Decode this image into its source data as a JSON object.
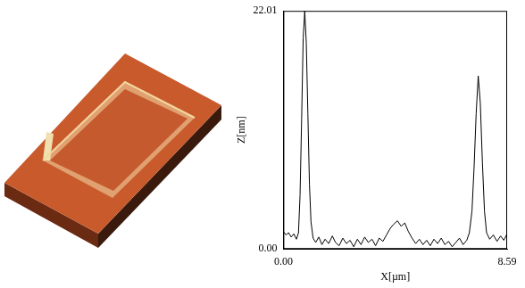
{
  "chart_data": {
    "type": "line",
    "x_label": "X[µm]",
    "y_label": "Z[nm]",
    "color": "#000000",
    "grid": false,
    "xlim": [
      0,
      8.59
    ],
    "ylim": [
      0,
      22.01
    ],
    "xticks": [
      {
        "value": 0,
        "label": "0.00"
      },
      {
        "value": 8.59,
        "label": "8.59"
      }
    ],
    "yticks": [
      {
        "value": 0,
        "label": "0.00"
      },
      {
        "value": 22.01,
        "label": "22.01"
      }
    ],
    "x": [
      0.0,
      0.1,
      0.2,
      0.3,
      0.4,
      0.5,
      0.58,
      0.64,
      0.7,
      0.76,
      0.82,
      0.88,
      0.94,
      1.0,
      1.06,
      1.14,
      1.24,
      1.36,
      1.48,
      1.6,
      1.74,
      1.88,
      2.0,
      2.14,
      2.28,
      2.42,
      2.56,
      2.7,
      2.84,
      2.98,
      3.12,
      3.26,
      3.4,
      3.54,
      3.68,
      3.82,
      3.96,
      4.1,
      4.24,
      4.38,
      4.52,
      4.66,
      4.8,
      4.94,
      5.08,
      5.22,
      5.36,
      5.5,
      5.64,
      5.78,
      5.92,
      6.06,
      6.2,
      6.34,
      6.48,
      6.62,
      6.76,
      6.9,
      7.04,
      7.14,
      7.24,
      7.32,
      7.4,
      7.48,
      7.56,
      7.64,
      7.72,
      7.8,
      7.92,
      8.06,
      8.2,
      8.34,
      8.46,
      8.59
    ],
    "values": [
      1.6,
      1.3,
      1.5,
      1.1,
      1.4,
      0.9,
      1.5,
      5.0,
      12.0,
      19.5,
      22.01,
      19.0,
      12.5,
      6.0,
      2.5,
      1.0,
      0.6,
      1.1,
      0.4,
      0.9,
      0.5,
      1.2,
      0.6,
      0.3,
      1.0,
      0.5,
      0.8,
      0.2,
      0.9,
      0.4,
      1.1,
      0.6,
      0.9,
      0.3,
      1.0,
      0.7,
      1.3,
      1.9,
      2.3,
      2.6,
      2.1,
      2.4,
      1.6,
      1.0,
      0.5,
      0.9,
      0.4,
      0.8,
      0.3,
      0.9,
      0.5,
      1.0,
      0.4,
      0.7,
      0.2,
      0.6,
      1.0,
      0.4,
      0.8,
      1.5,
      3.5,
      7.5,
      12.5,
      16.0,
      13.5,
      8.0,
      3.5,
      1.5,
      0.9,
      1.3,
      0.7,
      1.2,
      0.8,
      1.4
    ]
  }
}
